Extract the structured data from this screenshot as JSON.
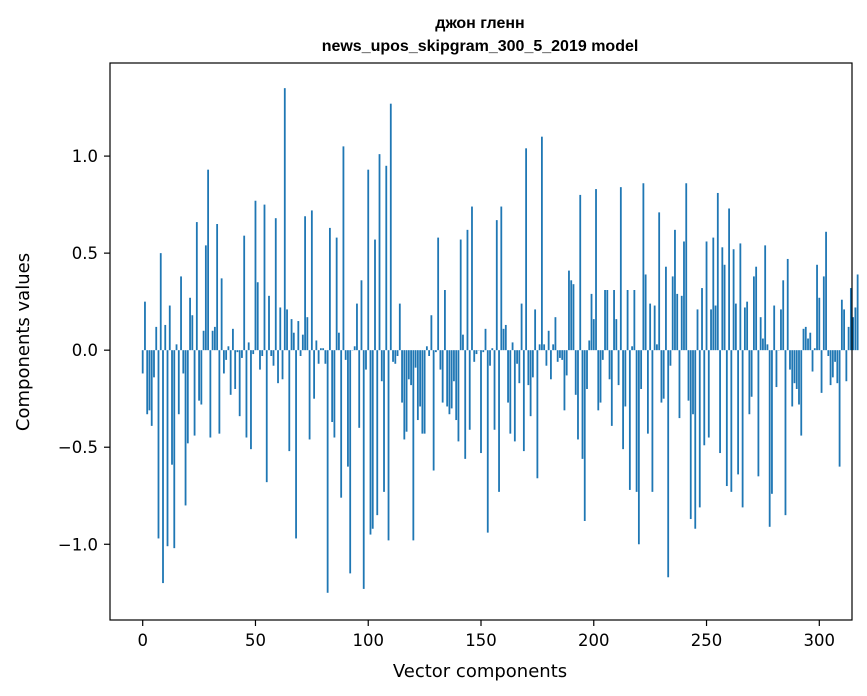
{
  "chart_data": {
    "type": "bar",
    "title_line1": "джон гленн",
    "title_line2": "news_upos_skipgram_300_5_2019 model",
    "xlabel": "Vector components",
    "ylabel": "Components values",
    "xlim": [
      -14.5,
      314.5
    ],
    "ylim": [
      -1.3902,
      1.4796
    ],
    "xticks": [
      0,
      50,
      100,
      150,
      200,
      250,
      300
    ],
    "xtick_labels": [
      "0",
      "50",
      "100",
      "150",
      "200",
      "250",
      "300"
    ],
    "yticks": [
      -1.0,
      -0.5,
      0.0,
      0.5,
      1.0
    ],
    "ytick_labels": [
      "−1.0",
      "−0.5",
      "0.0",
      "0.5",
      "1.0"
    ],
    "bar_color": "#1f77b4",
    "grid": false,
    "legend": false,
    "values": [
      -0.12,
      0.25,
      -0.33,
      -0.31,
      -0.39,
      -0.14,
      0.12,
      -0.97,
      0.5,
      -1.2,
      0.13,
      -1.01,
      0.23,
      -0.59,
      -1.02,
      0.03,
      -0.33,
      0.38,
      -0.12,
      -0.8,
      -0.48,
      0.27,
      0.18,
      -0.44,
      0.66,
      -0.26,
      -0.28,
      0.1,
      0.54,
      0.93,
      -0.45,
      0.1,
      0.12,
      0.65,
      -0.43,
      0.37,
      -0.12,
      -0.05,
      0.02,
      -0.23,
      0.11,
      -0.2,
      -0.01,
      -0.34,
      -0.04,
      0.59,
      -0.45,
      0.04,
      -0.51,
      -0.02,
      0.77,
      0.35,
      -0.1,
      -0.03,
      0.75,
      -0.68,
      0.28,
      -0.03,
      -0.08,
      0.68,
      -0.17,
      0.22,
      -0.15,
      1.35,
      0.21,
      -0.52,
      0.16,
      0.09,
      -0.97,
      0.15,
      -0.03,
      0.08,
      0.69,
      0.17,
      -0.46,
      0.72,
      -0.25,
      0.05,
      -0.07,
      0.01,
      0.01,
      -0.07,
      -1.25,
      0.63,
      -0.37,
      -0.45,
      0.58,
      0.09,
      -0.76,
      1.05,
      -0.05,
      -0.6,
      -1.15,
      0.0,
      0.02,
      0.24,
      -0.4,
      0.36,
      -1.23,
      -0.1,
      0.93,
      -0.95,
      -0.92,
      0.57,
      -0.85,
      1.01,
      -0.16,
      -0.73,
      0.95,
      -0.98,
      1.27,
      -0.06,
      -0.07,
      -0.03,
      0.24,
      -0.27,
      -0.46,
      -0.42,
      -0.15,
      -0.18,
      -0.98,
      -0.09,
      -0.36,
      -0.29,
      -0.43,
      -0.43,
      0.02,
      -0.03,
      0.18,
      -0.62,
      -0.01,
      0.58,
      -0.1,
      -0.27,
      0.31,
      -0.29,
      -0.33,
      -0.3,
      -0.16,
      -0.36,
      -0.47,
      0.57,
      0.08,
      -0.56,
      0.62,
      -0.41,
      0.74,
      -0.06,
      -0.02,
      0.0,
      -0.53,
      -0.01,
      0.11,
      -0.94,
      -0.08,
      0.01,
      -0.41,
      0.67,
      -0.73,
      0.74,
      0.11,
      0.13,
      -0.27,
      -0.43,
      0.04,
      -0.47,
      -0.07,
      -0.17,
      0.24,
      -0.52,
      1.04,
      -0.18,
      -0.34,
      -0.14,
      0.21,
      -0.66,
      0.03,
      1.1,
      0.03,
      -0.08,
      0.1,
      -0.15,
      0.03,
      0.17,
      -0.06,
      -0.04,
      -0.05,
      -0.31,
      -0.13,
      0.41,
      0.36,
      0.34,
      -0.23,
      -0.46,
      0.8,
      -0.56,
      -0.88,
      -0.2,
      0.05,
      0.29,
      0.16,
      0.83,
      -0.31,
      -0.27,
      -0.05,
      0.31,
      0.31,
      -0.15,
      -0.39,
      0.31,
      0.16,
      -0.18,
      0.84,
      -0.51,
      -0.29,
      0.31,
      -0.72,
      0.02,
      0.31,
      -0.73,
      -1.0,
      -0.2,
      0.86,
      0.39,
      -0.43,
      0.24,
      -0.73,
      0.23,
      0.03,
      0.71,
      -0.27,
      -0.25,
      0.43,
      -1.17,
      -0.08,
      0.38,
      0.62,
      0.29,
      -0.35,
      0.28,
      0.56,
      0.86,
      -0.26,
      -0.87,
      -0.33,
      -0.92,
      0.21,
      -0.81,
      0.32,
      -0.49,
      0.56,
      -0.45,
      0.21,
      0.58,
      0.23,
      0.81,
      -0.53,
      0.53,
      0.44,
      -0.7,
      0.73,
      -0.73,
      0.52,
      0.24,
      -0.64,
      0.55,
      -0.81,
      0.22,
      0.25,
      -0.33,
      -0.24,
      0.38,
      0.43,
      -0.65,
      0.17,
      0.06,
      0.54,
      0.03,
      -0.91,
      -0.74,
      0.23,
      -0.19,
      0.0,
      0.21,
      0.36,
      -0.85,
      0.47,
      -0.1,
      -0.29,
      -0.17,
      -0.2,
      -0.28,
      -0.44,
      0.11,
      0.12,
      0.06,
      0.09,
      -0.11,
      0.01,
      0.44,
      0.27,
      -0.22,
      0.38,
      0.61,
      -0.03,
      -0.18,
      -0.14,
      -0.06,
      -0.17,
      -0.6,
      0.26,
      0.21,
      -0.16,
      0.12,
      0.32,
      0.17,
      0.22,
      0.39
    ]
  }
}
